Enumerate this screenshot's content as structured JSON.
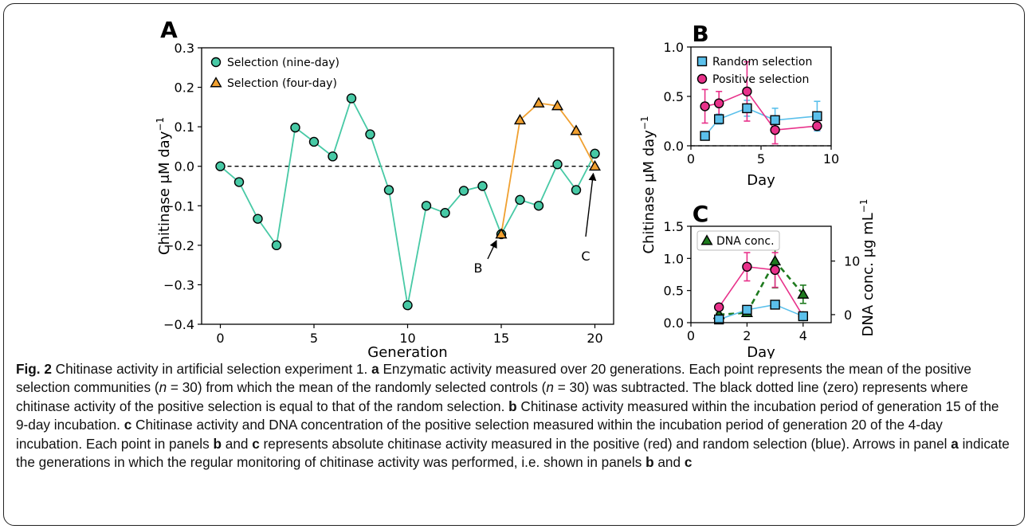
{
  "chart_data": [
    {
      "panel": "A",
      "type": "line",
      "xlabel": "Generation",
      "ylabel": "Chitinase μM day−1",
      "xlim": [
        -1,
        21
      ],
      "ylim": [
        -0.4,
        0.3
      ],
      "xticks": [
        0,
        5,
        10,
        15,
        20
      ],
      "yticks": [
        -0.4,
        -0.3,
        -0.2,
        -0.1,
        0.0,
        0.1,
        0.2,
        0.3
      ],
      "legend_position": "upper-left",
      "series": [
        {
          "name": "Selection (nine-day)",
          "color": "#47c9a5",
          "marker": "circle",
          "x": [
            0,
            1,
            2,
            3,
            4,
            5,
            6,
            7,
            8,
            9,
            10,
            11,
            12,
            13,
            14,
            15,
            16,
            17,
            18,
            19,
            20
          ],
          "y": [
            0.0,
            -0.04,
            -0.133,
            -0.2,
            0.098,
            0.062,
            0.025,
            0.172,
            0.081,
            -0.06,
            -0.352,
            -0.1,
            -0.118,
            -0.062,
            -0.05,
            -0.172,
            -0.085,
            -0.1,
            0.005,
            -0.06,
            0.032
          ]
        },
        {
          "name": "Selection (four-day)",
          "color": "#f0a030",
          "marker": "triangle",
          "x": [
            15,
            16,
            17,
            18,
            19,
            20
          ],
          "y": [
            -0.172,
            0.117,
            0.16,
            0.153,
            0.09,
            0.0
          ]
        }
      ],
      "reference_line": {
        "y": 0,
        "style": "dashed"
      },
      "annotations": [
        {
          "text": "B",
          "x": 15,
          "y": -0.172
        },
        {
          "text": "C",
          "x": 20,
          "y": 0.0
        }
      ]
    },
    {
      "panel": "B",
      "type": "line",
      "xlabel": "Day",
      "ylabel": "Chitinase μM day−1",
      "xlim": [
        0,
        10
      ],
      "ylim": [
        0,
        1.0
      ],
      "xticks": [
        0,
        5,
        10
      ],
      "yticks": [
        0.0,
        0.5,
        1.0
      ],
      "legend_position": "upper-left",
      "series": [
        {
          "name": "Random selection",
          "color": "#5bc0eb",
          "marker": "square",
          "x": [
            1,
            2,
            4,
            6,
            9
          ],
          "y": [
            0.1,
            0.27,
            0.38,
            0.26,
            0.3
          ],
          "err": [
            0.03,
            0.05,
            0.08,
            0.12,
            0.15
          ]
        },
        {
          "name": "Positive selection",
          "color": "#e8318a",
          "marker": "circle",
          "x": [
            1,
            2,
            4,
            6,
            9
          ],
          "y": [
            0.4,
            0.43,
            0.55,
            0.16,
            0.2
          ],
          "err": [
            0.17,
            0.12,
            0.3,
            0.14,
            0.04
          ]
        }
      ]
    },
    {
      "panel": "C",
      "type": "line",
      "xlabel": "Day",
      "ylabel": "Chitinase μM day−1",
      "ylabel_right": "DNA conc. μg mL−1",
      "xlim": [
        0,
        5
      ],
      "ylim": [
        0,
        1.5
      ],
      "ylim_right": [
        -1.5,
        16.5
      ],
      "xticks": [
        0,
        2,
        4
      ],
      "yticks": [
        0.0,
        0.5,
        1.0,
        1.5
      ],
      "yticks_right": [
        0,
        10
      ],
      "legend_position": "upper-left",
      "series": [
        {
          "name": "DNA conc.",
          "axis": "right",
          "color": "#1e7a1e",
          "marker": "triangle",
          "style": "dashed",
          "x": [
            1,
            2,
            3,
            4
          ],
          "y": [
            0.0,
            0.35,
            10.0,
            3.8
          ],
          "err": [
            0.3,
            0.3,
            5.0,
            1.7
          ]
        },
        {
          "axis": "left",
          "color": "#e8318a",
          "marker": "circle",
          "x": [
            1,
            2,
            3,
            4
          ],
          "y": [
            0.24,
            0.87,
            0.82,
            0.1
          ],
          "err": [
            0.0,
            0.22,
            0.27,
            0.0
          ]
        },
        {
          "axis": "left",
          "color": "#5bc0eb",
          "marker": "square",
          "x": [
            1,
            2,
            3,
            4
          ],
          "y": [
            0.05,
            0.2,
            0.28,
            0.1
          ],
          "err": [
            0.0,
            0.0,
            0.0,
            0.0
          ]
        }
      ]
    }
  ],
  "panels": {
    "a_letter": "A",
    "b_letter": "B",
    "c_letter": "C",
    "a_annot_b": "B",
    "a_annot_c": "C"
  },
  "caption": {
    "fig_label": "Fig. 2",
    "s1": " Chitinase activity in artificial selection experiment 1. ",
    "a": "a",
    "s2": " Enzymatic activity measured over 20 generations. Each point represents the mean of the positive selection communities (",
    "n1": "n",
    "s3": " = 30) from which the mean of the randomly selected controls (",
    "n2": "n",
    "s4": " = 30) was subtracted. The black dotted line (zero) represents where chitinase activity of the positive selection is equal to that of the random selection. ",
    "b1": "b",
    "s5": " Chitinase activity measured within the incubation period of generation 15 of the 9-day incubation. ",
    "c1": "c",
    "s6": " Chitinase activity and DNA concentration of the positive selection measured within the incubation period of generation 20 of the 4-day incubation. Each point in panels ",
    "b2": "b",
    "s7": " and ",
    "c2": "c",
    "s8": " represents absolute chitinase activity measured in the positive (red) and random selection (blue). Arrows in panel ",
    "a2": "a",
    "s9": " indicate the generations in which the regular monitoring of chitinase activity was performed, i.e. shown in panels ",
    "b3": "b",
    "s10": " and ",
    "c3": "c"
  }
}
